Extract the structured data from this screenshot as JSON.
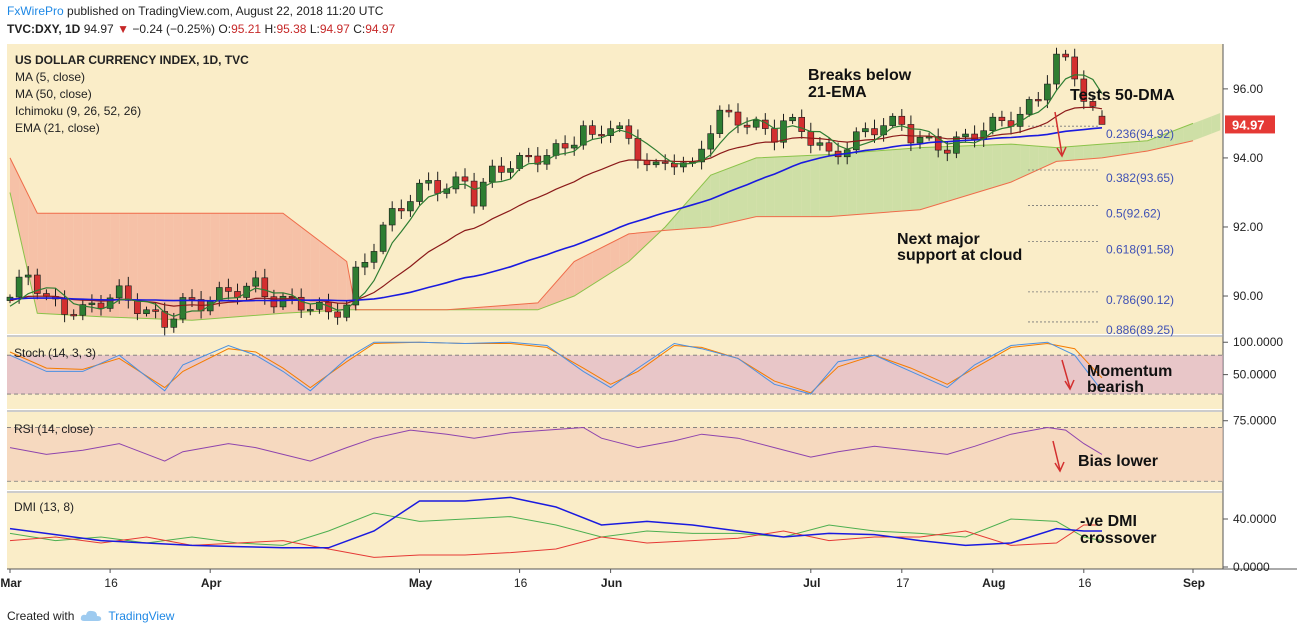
{
  "header": {
    "publisher": "FxWirePro",
    "published_text": "published on TradingView.com, August 22, 2018 11:20 UTC",
    "symbol": "TVC:DXY, 1D",
    "last": "94.97",
    "change_arrow": "▼",
    "change": "−0.24 (−0.25%)",
    "o_label": "O:",
    "o_value": "95.21",
    "h_label": "H:",
    "h_value": "95.38",
    "l_label": "L:",
    "l_value": "94.97",
    "c_label": "C:",
    "c_value": "94.97"
  },
  "legend": {
    "title": "US DOLLAR CURRENCY INDEX, 1D, TVC",
    "items": [
      "MA (5, close)",
      "MA (50, close)",
      "Ichimoku (9, 26, 52, 26)",
      "EMA (21, close)"
    ]
  },
  "annotations": {
    "ema_break_1": "Breaks below",
    "ema_break_2": "21-EMA",
    "tests": "Tests 50-DMA",
    "support_1": "Next major",
    "support_2": "support at cloud",
    "momentum_1": "Momentum",
    "momentum_2": "bearish",
    "bias": "Bias lower",
    "dmi_1": "-ve DMI",
    "dmi_2": "crossover"
  },
  "price_tag": "94.97",
  "footer": {
    "created_with": "Created with",
    "brand": "TradingView"
  },
  "colors": {
    "bull": "#2e7d32",
    "bear": "#d32f2f",
    "ma5": "#2e7d32",
    "ma50": "#1a1adf",
    "ema21": "#8b1a1a",
    "fib": "#3f51b5",
    "stoch_k": "#4a90e2",
    "stoch_d": "#f57c00",
    "rsi": "#8e44ad",
    "dmi_adx": "#1a1adf",
    "dmi_plus": "#4caf50",
    "dmi_minus": "#e53935"
  },
  "chart_data": {
    "type": "candlestick",
    "xaxis": {
      "labels": [
        "Mar",
        "16",
        "Apr",
        "May",
        "16",
        "Jun",
        "Jul",
        "17",
        "Aug",
        "16",
        "Sep"
      ],
      "label_days": [
        0,
        11,
        22,
        45,
        56,
        66,
        88,
        98,
        108,
        118,
        130
      ]
    },
    "price": {
      "ylim": [
        88.9,
        97.3
      ],
      "ticks": [
        90.0,
        92.0,
        94.0,
        96.0
      ],
      "tick_labels": [
        "90.00",
        "92.00",
        "94.00",
        "96.00"
      ],
      "anchors": [
        [
          0,
          89.9
        ],
        [
          2,
          90.6
        ],
        [
          4,
          89.9
        ],
        [
          6,
          89.7
        ],
        [
          8,
          89.6
        ],
        [
          10,
          89.8
        ],
        [
          12,
          90.0
        ],
        [
          14,
          89.7
        ],
        [
          17,
          89.3
        ],
        [
          19,
          89.8
        ],
        [
          21,
          89.7
        ],
        [
          24,
          90.1
        ],
        [
          27,
          90.4
        ],
        [
          29,
          89.9
        ],
        [
          32,
          89.7
        ],
        [
          35,
          89.5
        ],
        [
          37,
          89.8
        ],
        [
          38,
          90.7
        ],
        [
          40,
          91.5
        ],
        [
          42,
          92.3
        ],
        [
          44,
          92.8
        ],
        [
          46,
          93.3
        ],
        [
          48,
          93.2
        ],
        [
          50,
          93.4
        ],
        [
          51,
          92.8
        ],
        [
          53,
          93.5
        ],
        [
          55,
          93.8
        ],
        [
          57,
          94.0
        ],
        [
          59,
          94.2
        ],
        [
          61,
          94.3
        ],
        [
          63,
          94.8
        ],
        [
          64,
          94.4
        ],
        [
          66,
          95.0
        ],
        [
          67,
          94.8
        ],
        [
          69,
          94.2
        ],
        [
          71,
          93.7
        ],
        [
          73,
          93.9
        ],
        [
          75,
          93.6
        ],
        [
          76,
          94.3
        ],
        [
          77,
          94.9
        ],
        [
          78,
          95.3
        ],
        [
          80,
          95.2
        ],
        [
          82,
          94.9
        ],
        [
          84,
          94.6
        ],
        [
          85,
          95.0
        ],
        [
          87,
          94.8
        ],
        [
          89,
          94.4
        ],
        [
          90,
          94.1
        ],
        [
          92,
          94.4
        ],
        [
          94,
          94.7
        ],
        [
          96,
          94.9
        ],
        [
          98,
          95.0
        ],
        [
          99,
          94.7
        ],
        [
          101,
          94.5
        ],
        [
          103,
          94.3
        ],
        [
          105,
          94.5
        ],
        [
          107,
          94.8
        ],
        [
          109,
          95.1
        ],
        [
          111,
          95.3
        ],
        [
          113,
          95.8
        ],
        [
          114,
          96.3
        ],
        [
          115,
          96.8
        ],
        [
          116,
          96.7
        ],
        [
          117,
          96.4
        ],
        [
          118,
          95.7
        ],
        [
          119,
          95.3
        ],
        [
          120,
          94.97
        ]
      ],
      "ohlc_last": {
        "o": 95.21,
        "h": 95.38,
        "l": 94.97,
        "c": 94.97
      },
      "fib_levels": [
        {
          "value": 94.92,
          "label": "0.236(94.92)"
        },
        {
          "value": 93.65,
          "label": "0.382(93.65)"
        },
        {
          "value": 92.62,
          "label": "0.5(92.62)"
        },
        {
          "value": 91.58,
          "label": "0.618(91.58)"
        },
        {
          "value": 90.12,
          "label": "0.786(90.12)"
        },
        {
          "value": 89.25,
          "label": "0.886(89.25)"
        }
      ],
      "cloud": {
        "span_a": [
          [
            0,
            93.0
          ],
          [
            3,
            89.5
          ],
          [
            10,
            89.4
          ],
          [
            20,
            89.3
          ],
          [
            30,
            89.5
          ],
          [
            37,
            89.6
          ],
          [
            38,
            89.6
          ],
          [
            50,
            89.6
          ],
          [
            58,
            89.6
          ],
          [
            62,
            90.0
          ],
          [
            68,
            91.0
          ],
          [
            72,
            92.0
          ],
          [
            77,
            93.5
          ],
          [
            82,
            94.0
          ],
          [
            90,
            94.1
          ],
          [
            100,
            94.3
          ],
          [
            110,
            94.4
          ],
          [
            115,
            94.3
          ],
          [
            120,
            94.4
          ],
          [
            125,
            94.5
          ],
          [
            130,
            95.0
          ],
          [
            135,
            95.5
          ],
          [
            140,
            95.7
          ]
        ],
        "span_b": [
          [
            0,
            94.0
          ],
          [
            3,
            92.4
          ],
          [
            10,
            92.4
          ],
          [
            20,
            92.4
          ],
          [
            30,
            92.4
          ],
          [
            37,
            91.0
          ],
          [
            38,
            89.6
          ],
          [
            48,
            89.6
          ],
          [
            58,
            89.8
          ],
          [
            62,
            91.0
          ],
          [
            68,
            91.8
          ],
          [
            72,
            91.9
          ],
          [
            77,
            92.0
          ],
          [
            82,
            92.3
          ],
          [
            90,
            92.3
          ],
          [
            100,
            92.5
          ],
          [
            110,
            93.3
          ],
          [
            115,
            93.9
          ],
          [
            120,
            94.0
          ],
          [
            125,
            94.2
          ],
          [
            130,
            94.5
          ],
          [
            135,
            95.0
          ],
          [
            140,
            95.1
          ]
        ],
        "colors": {
          "bull": "#c5dca0",
          "bear": "#f4b9a1"
        }
      },
      "last_tag": 94.97
    },
    "stoch": {
      "title": "Stoch (14, 3, 3)",
      "ylim": [
        0,
        105
      ],
      "ticks": [
        50,
        100
      ],
      "tick_labels": [
        "50.0000",
        "100.0000"
      ],
      "band": [
        20,
        80
      ],
      "k": [
        [
          0,
          80
        ],
        [
          4,
          55
        ],
        [
          8,
          55
        ],
        [
          12,
          80
        ],
        [
          17,
          25
        ],
        [
          19,
          65
        ],
        [
          24,
          95
        ],
        [
          27,
          80
        ],
        [
          30,
          55
        ],
        [
          33,
          25
        ],
        [
          37,
          75
        ],
        [
          40,
          100
        ],
        [
          45,
          100
        ],
        [
          50,
          98
        ],
        [
          55,
          100
        ],
        [
          59,
          95
        ],
        [
          63,
          55
        ],
        [
          66,
          30
        ],
        [
          69,
          60
        ],
        [
          73,
          98
        ],
        [
          76,
          90
        ],
        [
          80,
          75
        ],
        [
          84,
          35
        ],
        [
          88,
          20
        ],
        [
          91,
          70
        ],
        [
          95,
          80
        ],
        [
          99,
          55
        ],
        [
          103,
          30
        ],
        [
          106,
          65
        ],
        [
          110,
          95
        ],
        [
          114,
          100
        ],
        [
          117,
          80
        ],
        [
          120,
          25
        ]
      ],
      "d": [
        [
          0,
          85
        ],
        [
          4,
          60
        ],
        [
          8,
          58
        ],
        [
          12,
          75
        ],
        [
          17,
          30
        ],
        [
          19,
          55
        ],
        [
          24,
          90
        ],
        [
          27,
          85
        ],
        [
          30,
          60
        ],
        [
          33,
          30
        ],
        [
          37,
          70
        ],
        [
          40,
          98
        ],
        [
          45,
          100
        ],
        [
          50,
          98
        ],
        [
          55,
          98
        ],
        [
          59,
          92
        ],
        [
          63,
          60
        ],
        [
          66,
          35
        ],
        [
          69,
          55
        ],
        [
          73,
          95
        ],
        [
          76,
          92
        ],
        [
          80,
          75
        ],
        [
          84,
          40
        ],
        [
          88,
          22
        ],
        [
          91,
          62
        ],
        [
          95,
          80
        ],
        [
          99,
          60
        ],
        [
          103,
          35
        ],
        [
          106,
          60
        ],
        [
          110,
          92
        ],
        [
          114,
          98
        ],
        [
          117,
          90
        ],
        [
          120,
          45
        ]
      ]
    },
    "rsi": {
      "title": "RSI (14, close)",
      "ylim": [
        25,
        80
      ],
      "ticks": [
        75
      ],
      "tick_labels": [
        "75.0000"
      ],
      "band": [
        30,
        70
      ],
      "values": [
        [
          0,
          55
        ],
        [
          4,
          50
        ],
        [
          8,
          53
        ],
        [
          12,
          58
        ],
        [
          17,
          45
        ],
        [
          19,
          52
        ],
        [
          24,
          58
        ],
        [
          27,
          55
        ],
        [
          30,
          50
        ],
        [
          33,
          45
        ],
        [
          37,
          55
        ],
        [
          40,
          62
        ],
        [
          44,
          68
        ],
        [
          48,
          65
        ],
        [
          51,
          62
        ],
        [
          55,
          66
        ],
        [
          59,
          68
        ],
        [
          63,
          70
        ],
        [
          65,
          62
        ],
        [
          69,
          55
        ],
        [
          73,
          60
        ],
        [
          76,
          65
        ],
        [
          80,
          62
        ],
        [
          84,
          55
        ],
        [
          88,
          48
        ],
        [
          91,
          52
        ],
        [
          95,
          56
        ],
        [
          99,
          53
        ],
        [
          103,
          50
        ],
        [
          106,
          56
        ],
        [
          110,
          65
        ],
        [
          114,
          70
        ],
        [
          116,
          68
        ],
        [
          118,
          58
        ],
        [
          120,
          50
        ]
      ]
    },
    "dmi": {
      "title": "DMI (13, 8)",
      "ylim": [
        0,
        60
      ],
      "ticks": [
        0,
        40
      ],
      "tick_labels": [
        "0.0000",
        "40.0000"
      ],
      "adx": [
        [
          0,
          32
        ],
        [
          5,
          27
        ],
        [
          10,
          22
        ],
        [
          15,
          20
        ],
        [
          20,
          18
        ],
        [
          25,
          17
        ],
        [
          30,
          16
        ],
        [
          35,
          16
        ],
        [
          40,
          30
        ],
        [
          45,
          55
        ],
        [
          50,
          55
        ],
        [
          55,
          58
        ],
        [
          60,
          50
        ],
        [
          65,
          35
        ],
        [
          70,
          38
        ],
        [
          75,
          35
        ],
        [
          80,
          30
        ],
        [
          85,
          25
        ],
        [
          90,
          28
        ],
        [
          95,
          27
        ],
        [
          100,
          22
        ],
        [
          105,
          18
        ],
        [
          110,
          20
        ],
        [
          115,
          32
        ],
        [
          118,
          30
        ],
        [
          120,
          30
        ]
      ],
      "plus_di": [
        [
          0,
          28
        ],
        [
          5,
          22
        ],
        [
          10,
          25
        ],
        [
          15,
          20
        ],
        [
          20,
          25
        ],
        [
          25,
          20
        ],
        [
          30,
          18
        ],
        [
          35,
          30
        ],
        [
          40,
          45
        ],
        [
          45,
          38
        ],
        [
          50,
          40
        ],
        [
          55,
          42
        ],
        [
          60,
          35
        ],
        [
          65,
          25
        ],
        [
          70,
          30
        ],
        [
          75,
          28
        ],
        [
          80,
          28
        ],
        [
          85,
          25
        ],
        [
          90,
          35
        ],
        [
          95,
          30
        ],
        [
          100,
          28
        ],
        [
          105,
          25
        ],
        [
          110,
          40
        ],
        [
          115,
          38
        ],
        [
          118,
          25
        ],
        [
          120,
          22
        ]
      ],
      "minus_di": [
        [
          0,
          22
        ],
        [
          5,
          25
        ],
        [
          10,
          20
        ],
        [
          15,
          25
        ],
        [
          20,
          18
        ],
        [
          25,
          20
        ],
        [
          30,
          22
        ],
        [
          35,
          15
        ],
        [
          40,
          8
        ],
        [
          45,
          10
        ],
        [
          50,
          10
        ],
        [
          55,
          12
        ],
        [
          60,
          15
        ],
        [
          65,
          25
        ],
        [
          70,
          20
        ],
        [
          75,
          22
        ],
        [
          80,
          24
        ],
        [
          85,
          30
        ],
        [
          90,
          22
        ],
        [
          95,
          25
        ],
        [
          100,
          25
        ],
        [
          105,
          30
        ],
        [
          110,
          18
        ],
        [
          115,
          20
        ],
        [
          118,
          35
        ],
        [
          120,
          35
        ]
      ]
    }
  }
}
